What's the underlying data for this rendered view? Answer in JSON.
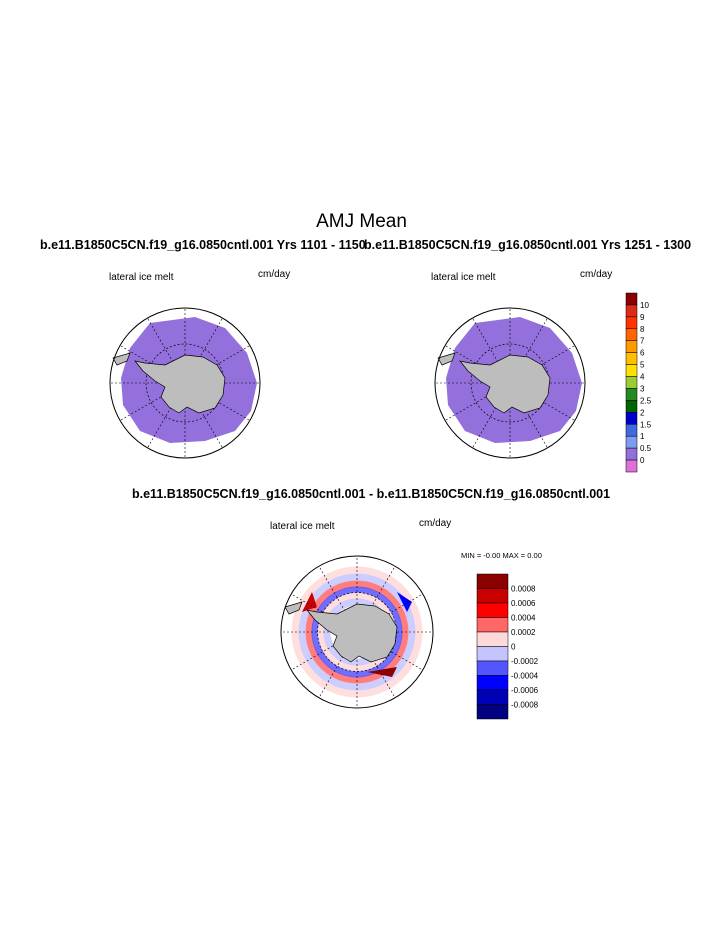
{
  "title": "AMJ Mean",
  "panels": [
    {
      "subtitle": "b.e11.B1850C5CN.f19_g16.0850cntl.001  Yrs 1101 - 1150",
      "left_label": "lateral ice melt",
      "right_label": "cm/day"
    },
    {
      "subtitle": "b.e11.B1850C5CN.f19_g16.0850cntl.001  Yrs 1251 - 1300",
      "left_label": "lateral ice melt",
      "right_label": "cm/day"
    },
    {
      "subtitle": "b.e11.B1850C5CN.f19_g16.0850cntl.001 - b.e11.B1850C5CN.f19_g16.0850cntl.001",
      "left_label": "lateral ice melt",
      "right_label": "cm/day",
      "minmax": "MIN =  -0.00 MAX =   0.00"
    }
  ],
  "chart_data": {
    "type": "map",
    "projection": "south polar stereographic",
    "colorbar_main": {
      "labels": [
        "10",
        "9",
        "8",
        "7",
        "6",
        "5",
        "4",
        "3",
        "2.5",
        "2",
        "1.5",
        "1",
        "0.5",
        "0"
      ],
      "colors": [
        "#8b0000",
        "#dd2a1a",
        "#ff3300",
        "#ff6600",
        "#ff9900",
        "#ffbf00",
        "#ffe000",
        "#9acd32",
        "#228b22",
        "#006400",
        "#0000cd",
        "#4169e1",
        "#7b9cf0",
        "#9370db",
        "#e070d8"
      ]
    },
    "colorbar_diff": {
      "labels": [
        "0.0008",
        "0.0006",
        "0.0004",
        "0.0002",
        "0",
        "-0.0002",
        "-0.0004",
        "-0.0006",
        "-0.0008"
      ],
      "colors": [
        "#8b0000",
        "#c80000",
        "#ff0000",
        "#ff6666",
        "#ffd8d8",
        "#c4c4ff",
        "#5555ff",
        "#0000ff",
        "#0000b4",
        "#000080"
      ]
    }
  }
}
